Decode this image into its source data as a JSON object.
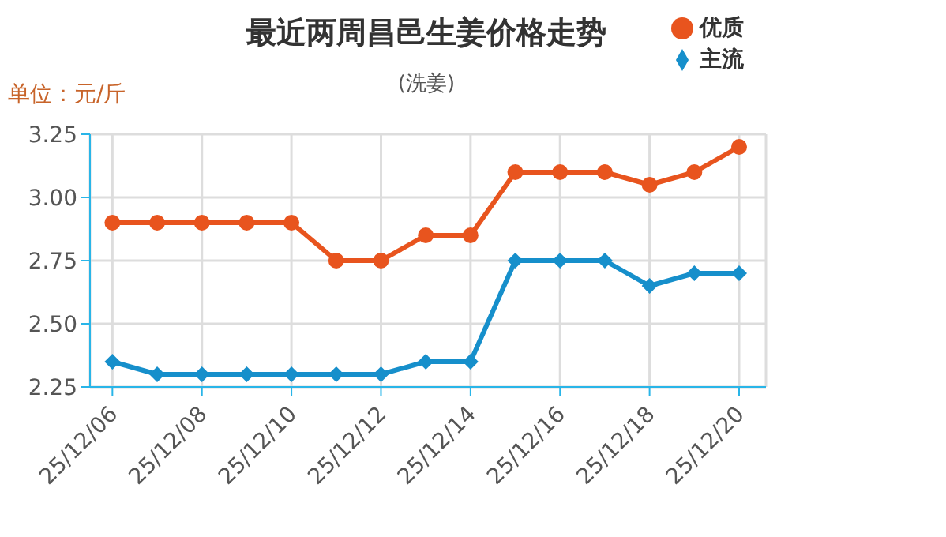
{
  "chart_data": {
    "type": "line",
    "title": "最近两周昌邑生姜价格走势",
    "subtitle": "(洗姜)",
    "ylabel": "单位：元/斤",
    "categories": [
      "25/12/06",
      null,
      "25/12/08",
      null,
      "25/12/10",
      null,
      "25/12/12",
      null,
      "25/12/14",
      null,
      "25/12/16",
      null,
      "25/12/18",
      null,
      "25/12/20"
    ],
    "series": [
      {
        "name": "优质",
        "color": "#e8541e",
        "marker": "circle",
        "values": [
          2.9,
          2.9,
          2.9,
          2.9,
          2.9,
          2.75,
          2.75,
          2.85,
          2.85,
          3.1,
          3.1,
          3.1,
          3.05,
          3.1,
          3.2
        ]
      },
      {
        "name": "主流",
        "color": "#168fcb",
        "marker": "diamond",
        "values": [
          2.35,
          2.3,
          2.3,
          2.3,
          2.3,
          2.3,
          2.3,
          2.35,
          2.35,
          2.75,
          2.75,
          2.75,
          2.65,
          2.7,
          2.7
        ]
      }
    ],
    "ylim": [
      2.25,
      3.25
    ],
    "yticks": [
      2.25,
      {
        "value": 2.5,
        "label": "2.50"
      },
      2.75,
      {
        "value": 3,
        "label": "3.00"
      },
      3.25
    ],
    "grid": true,
    "legend": "top right"
  }
}
